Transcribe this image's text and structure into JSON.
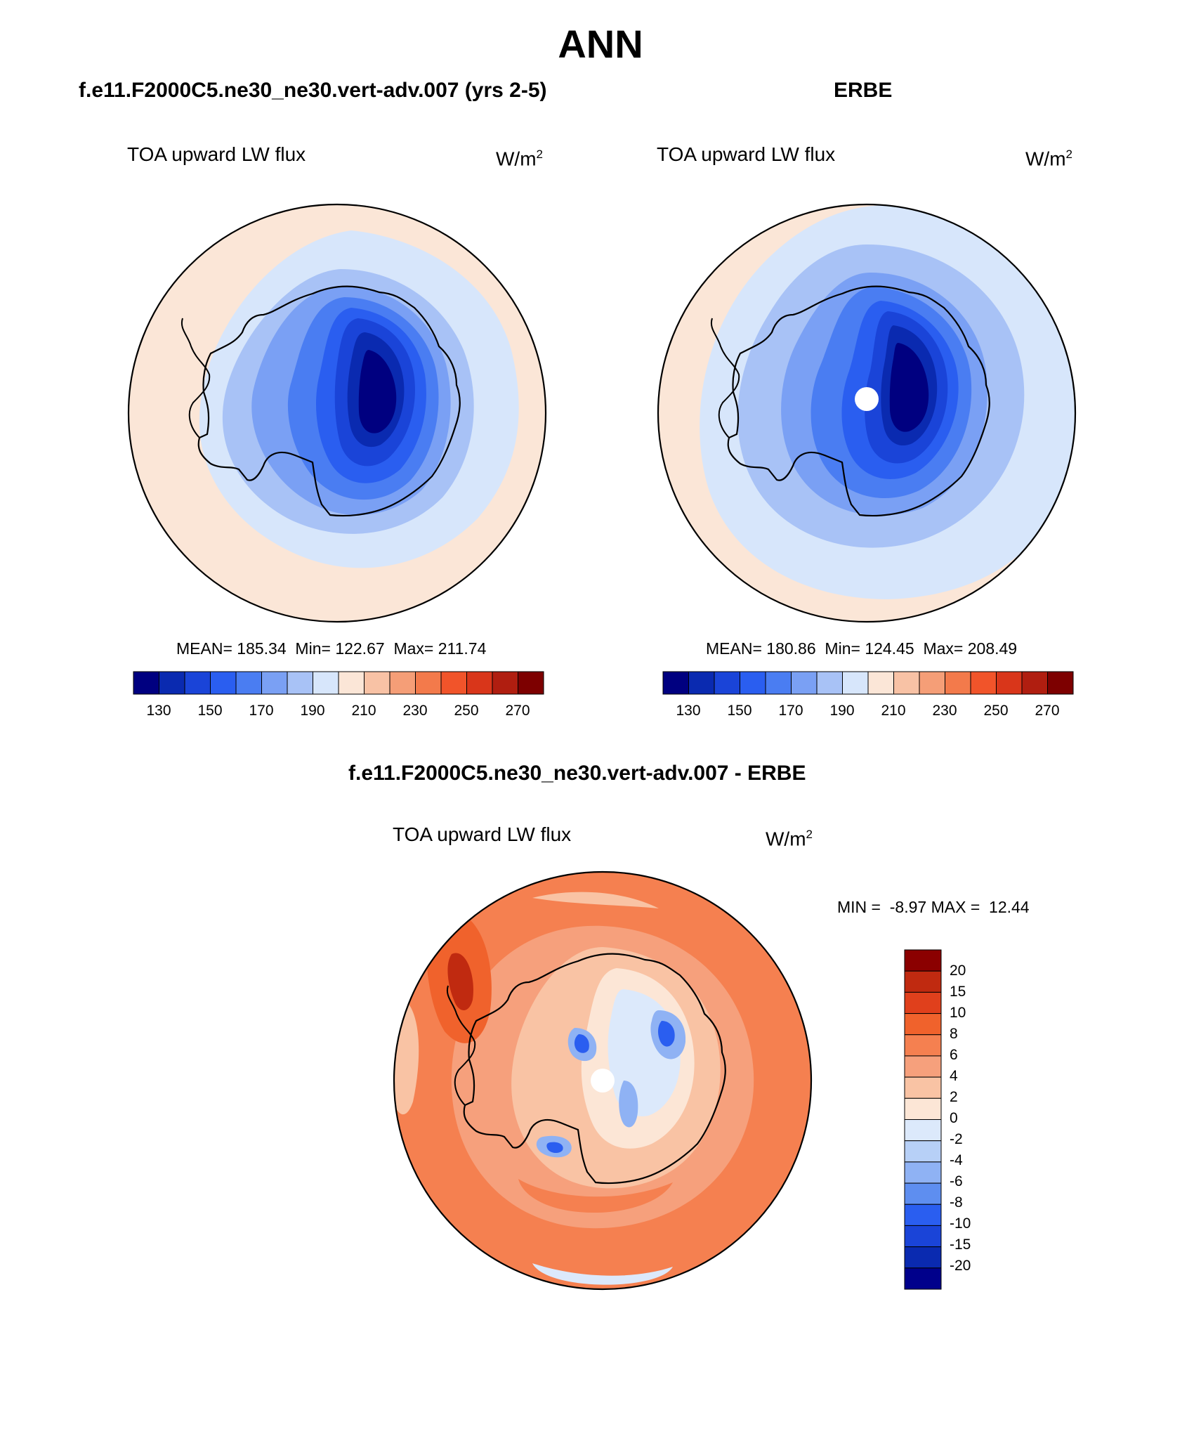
{
  "figure": {
    "season": "ANN"
  },
  "panels": {
    "model": {
      "title": "f.e11.F2000C5.ne30_ne30.vert-adv.007 (yrs 2-5)",
      "variable": "TOA upward LW flux",
      "units_base": "W/m",
      "units_exp": "2",
      "mean_label": "MEAN=",
      "mean": "185.34",
      "min_label": "Min=",
      "min": "122.67",
      "max_label": "Max=",
      "max": "211.74"
    },
    "obs": {
      "title": "ERBE",
      "variable": "TOA upward LW flux",
      "units_base": "W/m",
      "units_exp": "2",
      "mean_label": "MEAN=",
      "mean": "180.86",
      "min_label": "Min=",
      "min": "124.45",
      "max_label": "Max=",
      "max": "208.49"
    },
    "diff": {
      "title": "f.e11.F2000C5.ne30_ne30.vert-adv.007 - ERBE",
      "variable": "TOA upward LW flux",
      "units_base": "W/m",
      "units_exp": "2",
      "min_label": "MIN =",
      "min": "-8.97",
      "max_label": "MAX =",
      "max": "12.44"
    }
  },
  "colorbars": {
    "absolute": {
      "orientation": "horizontal",
      "tick_labels": [
        "130",
        "150",
        "170",
        "190",
        "210",
        "230",
        "250",
        "270"
      ],
      "colors": [
        "#000080",
        "#0a2ab0",
        "#1a44d8",
        "#2a5ef0",
        "#4a7df2",
        "#7aa0f4",
        "#a8c2f6",
        "#d7e6fb",
        "#fbe6d7",
        "#f8c2a5",
        "#f59e77",
        "#f37a4b",
        "#f1542a",
        "#d9361a",
        "#b01e10",
        "#7d0000"
      ]
    },
    "difference": {
      "orientation": "vertical",
      "tick_labels": [
        "20",
        "15",
        "10",
        "8",
        "6",
        "4",
        "2",
        "0",
        "-2",
        "-4",
        "-6",
        "-8",
        "-10",
        "-15",
        "-20"
      ],
      "colors": [
        "#8b0000",
        "#c02a10",
        "#e0401c",
        "#f0622c",
        "#f58050",
        "#f6a07c",
        "#f9c3a4",
        "#fce6d6",
        "#dce9fb",
        "#b7d0f7",
        "#8fb2f4",
        "#5e8ef0",
        "#2a5ef0",
        "#1a44d8",
        "#0a2ab0",
        "#00008b"
      ]
    }
  }
}
